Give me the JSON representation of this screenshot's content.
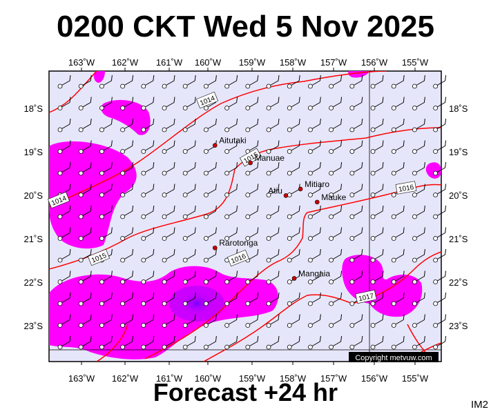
{
  "header": {
    "title": "0200 CKT Wed 5 Nov 2025"
  },
  "footer": {
    "forecast": "Forecast +24 hr",
    "code": "IM2"
  },
  "map": {
    "lon_labels": [
      "163˚W",
      "162˚W",
      "161˚W",
      "160˚W",
      "159˚W",
      "158˚W",
      "157˚W",
      "156˚W",
      "155˚W"
    ],
    "lat_labels": [
      "18˚S",
      "19˚S",
      "20˚S",
      "21˚S",
      "22˚S",
      "23˚S"
    ],
    "places": [
      {
        "name": "Aitutaki",
        "lon": -159.8,
        "lat": -18.85
      },
      {
        "name": "Manuae",
        "lon": -158.95,
        "lat": -19.25
      },
      {
        "name": "Atiu",
        "lon": -158.1,
        "lat": -20.0
      },
      {
        "name": "Mitiaro",
        "lon": -157.75,
        "lat": -19.85
      },
      {
        "name": "Mauke",
        "lon": -157.35,
        "lat": -20.15
      },
      {
        "name": "Rarotonga",
        "lon": -159.8,
        "lat": -21.2
      },
      {
        "name": "Mangaia",
        "lon": -157.9,
        "lat": -21.9
      }
    ],
    "isobars": [
      {
        "label": "1014"
      },
      {
        "label": "1015"
      },
      {
        "label": "1016"
      },
      {
        "label": "1017"
      }
    ],
    "copyright": "Copyright metvuw.com",
    "colors": {
      "ocean": "#e6e6fa",
      "rain_light": "#ff00ff",
      "rain_mid": "#cc00ff",
      "rain_heavy": "#7f00ff",
      "isobar": "#ff0000",
      "place": "#cc0000"
    }
  }
}
